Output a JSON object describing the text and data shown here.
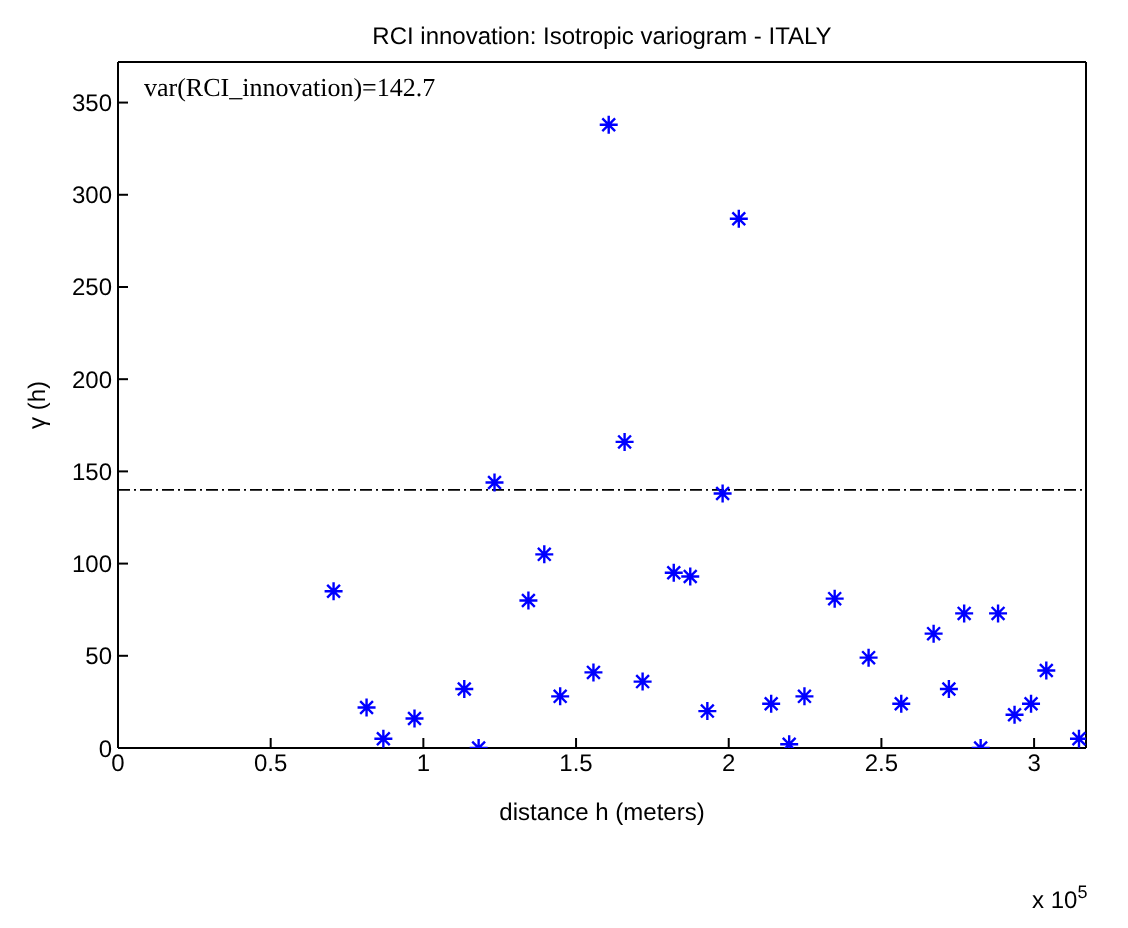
{
  "chart_data": {
    "type": "scatter",
    "title": "RCI innovation: Isotropic variogram - ITALY",
    "xlabel": "distance h (meters)",
    "ylabel": "γ (h)",
    "annotations": [
      "var(RCI_innovation)=142.7",
      "x 10$^{5}$"
    ],
    "x": [
      0.706,
      0.814,
      0.869,
      0.971,
      1.134,
      1.181,
      1.233,
      1.344,
      1.396,
      1.448,
      1.557,
      1.607,
      1.659,
      1.718,
      1.82,
      1.874,
      1.93,
      1.98,
      2.033,
      2.139,
      2.198,
      2.248,
      2.347,
      2.458,
      2.565,
      2.671,
      2.721,
      2.771,
      2.825,
      2.882,
      2.936,
      2.99,
      3.04,
      3.147
    ],
    "series": [
      {
        "color": "#0000ff",
        "values": [
          85,
          22,
          5,
          16,
          32,
          0,
          144,
          80,
          105,
          28,
          41,
          338,
          166,
          36,
          95,
          93,
          20,
          138,
          287,
          24,
          2,
          28,
          81,
          49,
          24,
          62,
          32,
          73,
          0,
          73,
          18,
          24,
          42,
          5
        ]
      }
    ],
    "ref_lines": [
      {
        "axis": "y",
        "value": 140,
        "color": "#000000",
        "line_style": "dashdot"
      }
    ],
    "xlim": [
      0,
      3.17
    ],
    "xticks": [
      0,
      0.5,
      1,
      1.5,
      2,
      2.5,
      3
    ],
    "ylim": [
      0,
      372
    ],
    "yticks": [
      0,
      50,
      100,
      150,
      200,
      250,
      300,
      350
    ],
    "marker": "cross"
  }
}
